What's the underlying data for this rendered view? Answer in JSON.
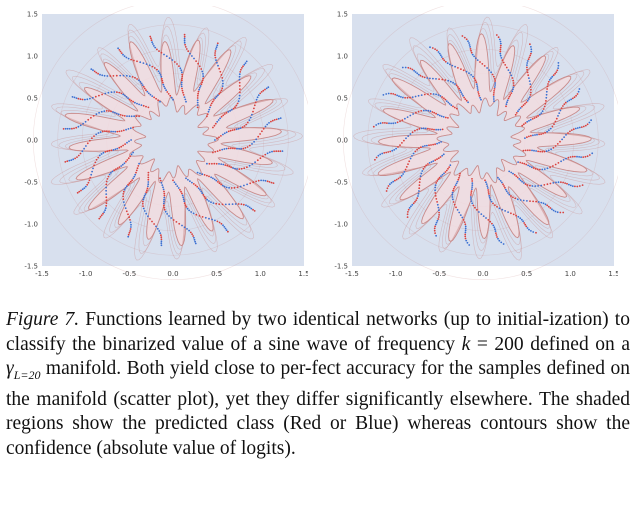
{
  "figure": {
    "panels": [
      {
        "id": "left",
        "x_ticks": [
          "-1.5",
          "-1.0",
          "-0.5",
          "0.0",
          "0.5",
          "1.0",
          "1.5"
        ],
        "y_ticks": [
          "1.5",
          "1.0",
          "0.5",
          "0.0",
          "-0.5",
          "-1.0",
          "-1.5"
        ]
      },
      {
        "id": "right",
        "x_ticks": [
          "-1.5",
          "-1.0",
          "-0.5",
          "0.0",
          "0.5",
          "1.0",
          "1.5"
        ],
        "y_ticks": [
          "1.5",
          "1.0",
          "0.5",
          "0.0",
          "-0.5",
          "-1.0",
          "-1.5"
        ]
      }
    ],
    "colors": {
      "red_class": "#f2dcdf",
      "blue_class": "#d8e0ee",
      "red_points": "#d9413e",
      "blue_points": "#3b6fd1",
      "contour": "#c98c8c"
    }
  },
  "caption": {
    "label": "Figure 7.",
    "p1": " Functions learned by two identical networks (up to initial-ization) to classify the binarized value of a sine wave of frequency ",
    "k": "k",
    "eq": " = 200 defined on a ",
    "gamma": "γ",
    "gamma_sub": "L=20",
    "p2": " manifold. Both yield close to per-fect accuracy for the samples defined on the manifold (scatter plot), yet they differ significantly elsewhere. The shaded regions show the predicted class (Red or Blue) whereas contours show the confidence (absolute value of logits)."
  }
}
